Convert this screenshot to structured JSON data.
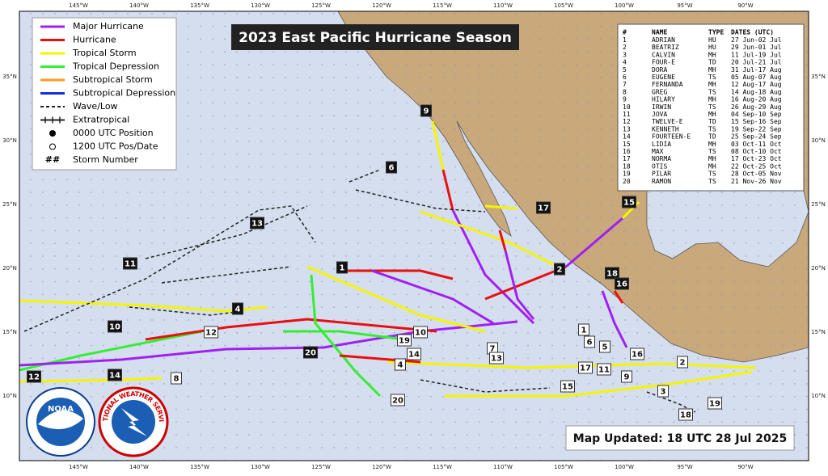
{
  "title": "2023 East Pacific Hurricane Season",
  "legend": [
    "Major Hurricane",
    "Hurricane",
    "Tropical Storm",
    "Tropical Depression",
    "Subtropical Storm",
    "Subtropical Depression",
    "Wave/Low",
    "Extratropical",
    "0000 UTC Position",
    "1200 UTC Pos/Date",
    "Storm Number"
  ],
  "legend_symbol": "##",
  "lon_labels": [
    "145°W",
    "140°W",
    "135°W",
    "130°W",
    "125°W",
    "120°W",
    "115°W",
    "110°W",
    "105°W",
    "100°W",
    "95°W",
    "90°W"
  ],
  "lat_labels": [
    "35°N",
    "30°N",
    "25°N",
    "20°N",
    "15°N",
    "10°N"
  ],
  "table": {
    "header": [
      "#",
      "NAME",
      "TYPE",
      "DATES (UTC)"
    ],
    "rows": [
      [
        "1",
        "ADRIAN",
        "HU",
        "27 Jun-02 Jul"
      ],
      [
        "2",
        "BEATRIZ",
        "HU",
        "29 Jun-01 Jul"
      ],
      [
        "3",
        "CALVIN",
        "MH",
        "11 Jul-19 Jul"
      ],
      [
        "4",
        "FOUR-E",
        "TD",
        "20 Jul-21 Jul"
      ],
      [
        "5",
        "DORA",
        "MH",
        "31 Jul-17 Aug"
      ],
      [
        "6",
        "EUGENE",
        "TS",
        "05 Aug-07 Aug"
      ],
      [
        "7",
        "FERNANDA",
        "MH",
        "12 Aug-17 Aug"
      ],
      [
        "8",
        "GREG",
        "TS",
        "14 Aug-18 Aug"
      ],
      [
        "9",
        "HILARY",
        "MH",
        "16 Aug-20 Aug"
      ],
      [
        "10",
        "IRWIN",
        "TS",
        "26 Aug-29 Aug"
      ],
      [
        "11",
        "JOVA",
        "MH",
        "04 Sep-10 Sep"
      ],
      [
        "12",
        "TWELVE-E",
        "TD",
        "15 Sep-16 Sep"
      ],
      [
        "13",
        "KENNETH",
        "TS",
        "19 Sep-22 Sep"
      ],
      [
        "14",
        "FOURTEEN-E",
        "TD",
        "25 Sep-24 Sep"
      ],
      [
        "15",
        "LIDIA",
        "MH",
        "03 Oct-11 Oct"
      ],
      [
        "16",
        "MAX",
        "TS",
        "08 Oct-10 Oct"
      ],
      [
        "17",
        "NORMA",
        "MH",
        "17 Oct-23 Oct"
      ],
      [
        "18",
        "OTIS",
        "MH",
        "22 Oct-25 Oct"
      ],
      [
        "19",
        "PILAR",
        "TS",
        "28 Oct-05 Nov"
      ],
      [
        "20",
        "RAMON",
        "TS",
        "21 Nov-26 Nov"
      ]
    ]
  },
  "storm_markers": [
    {
      "label": "9",
      "dark": true
    },
    {
      "label": "6",
      "dark": true
    },
    {
      "label": "17",
      "dark": true
    },
    {
      "label": "15",
      "dark": true
    },
    {
      "label": "13",
      "dark": true
    },
    {
      "label": "11",
      "dark": true
    },
    {
      "label": "1",
      "dark": true
    },
    {
      "label": "2",
      "dark": true
    },
    {
      "label": "18",
      "dark": true
    },
    {
      "label": "16",
      "dark": true
    },
    {
      "label": "4",
      "dark": true
    },
    {
      "label": "10",
      "dark": true
    },
    {
      "label": "20",
      "dark": true
    },
    {
      "label": "12",
      "dark": true
    },
    {
      "label": "14",
      "dark": true
    },
    {
      "label": "12",
      "dark": false
    },
    {
      "label": "10",
      "dark": false
    },
    {
      "label": "19",
      "dark": false
    },
    {
      "label": "1",
      "dark": false
    },
    {
      "label": "6",
      "dark": false
    },
    {
      "label": "7",
      "dark": false
    },
    {
      "label": "13",
      "dark": false
    },
    {
      "label": "14",
      "dark": false
    },
    {
      "label": "5",
      "dark": false
    },
    {
      "label": "4",
      "dark": false
    },
    {
      "label": "16",
      "dark": false
    },
    {
      "label": "2",
      "dark": false
    },
    {
      "label": "17",
      "dark": false
    },
    {
      "label": "11",
      "dark": false
    },
    {
      "label": "9",
      "dark": false
    },
    {
      "label": "15",
      "dark": false
    },
    {
      "label": "3",
      "dark": false
    },
    {
      "label": "8",
      "dark": false
    },
    {
      "label": "20",
      "dark": false
    },
    {
      "label": "18",
      "dark": false
    },
    {
      "label": "19",
      "dark": false
    }
  ],
  "updated": "Map Updated: 18 UTC 28 Jul 2025",
  "logos": {
    "noaa": "NOAA",
    "nws": "NATIONAL WEATHER SERVICE"
  }
}
